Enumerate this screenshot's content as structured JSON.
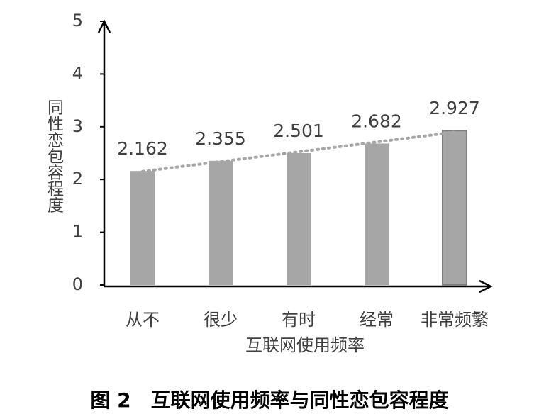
{
  "chart_data": {
    "type": "bar",
    "title": "图 2　互联网使用频率与同性恋包容程度",
    "x_label": "互联网使用频率",
    "y_label": "同性恋包容程度",
    "categories": [
      "从不",
      "很少",
      "有时",
      "经常",
      "非常频繁"
    ],
    "values": [
      2.162,
      2.355,
      2.501,
      2.682,
      2.927
    ],
    "color": "#a6a6a6",
    "trendline": true,
    "trendline_color": "#a6a6a6",
    "ylim": [
      0,
      5
    ],
    "yticks": [
      0,
      1,
      2,
      3,
      4,
      5
    ],
    "grid": false
  }
}
